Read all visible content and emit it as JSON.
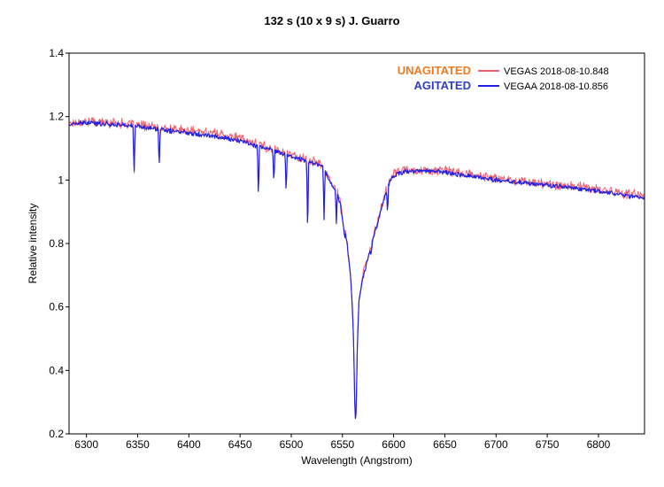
{
  "chart_data": {
    "type": "line",
    "title": "132 s (10 x 9 s)   J. Guarro",
    "xlabel": "Wavelength (Angstrom)",
    "ylabel": "Relative intensity",
    "xlim": [
      6283,
      6845
    ],
    "ylim": [
      0.2,
      1.4
    ],
    "x_ticks": [
      6300,
      6350,
      6400,
      6450,
      6500,
      6550,
      6600,
      6650,
      6700,
      6750,
      6800
    ],
    "y_ticks": [
      0.2,
      0.4,
      0.6,
      0.8,
      1,
      1.2,
      1.4
    ],
    "x_tick_labels": [
      "6300",
      "6350",
      "6400",
      "6450",
      "6500",
      "6550",
      "6600",
      "6650",
      "6700",
      "6750",
      "6800"
    ],
    "y_tick_labels": [
      "0.2",
      "0.4",
      "0.6",
      "0.8",
      "1",
      "1.2",
      "1.4"
    ],
    "grid": false,
    "legend_position": "top-right",
    "series": [
      {
        "name": "VEGAS  2018-08-10.848",
        "tag": "UNAGITATED",
        "color": "#f06070",
        "tag_color": "#f07a20",
        "noise": 0.012,
        "points": [
          [
            6283,
            1.18
          ],
          [
            6300,
            1.185
          ],
          [
            6330,
            1.18
          ],
          [
            6360,
            1.17
          ],
          [
            6380,
            1.16
          ],
          [
            6400,
            1.155
          ],
          [
            6420,
            1.15
          ],
          [
            6440,
            1.14
          ],
          [
            6460,
            1.12
          ],
          [
            6480,
            1.1
          ],
          [
            6500,
            1.08
          ],
          [
            6510,
            1.07
          ],
          [
            6520,
            1.06
          ],
          [
            6530,
            1.05
          ],
          [
            6540,
            0.99
          ],
          [
            6545,
            0.96
          ],
          [
            6548,
            0.93
          ],
          [
            6550,
            0.88
          ],
          [
            6553,
            0.84
          ],
          [
            6556,
            0.76
          ],
          [
            6558,
            0.7
          ],
          [
            6560,
            0.58
          ],
          [
            6561,
            0.48
          ],
          [
            6562,
            0.3
          ],
          [
            6562.8,
            0.245
          ],
          [
            6563.5,
            0.3
          ],
          [
            6564.5,
            0.48
          ],
          [
            6566,
            0.62
          ],
          [
            6570,
            0.7
          ],
          [
            6575,
            0.76
          ],
          [
            6580,
            0.82
          ],
          [
            6585,
            0.88
          ],
          [
            6590,
            0.94
          ],
          [
            6595,
            0.99
          ],
          [
            6600,
            1.02
          ],
          [
            6610,
            1.03
          ],
          [
            6630,
            1.03
          ],
          [
            6650,
            1.03
          ],
          [
            6680,
            1.015
          ],
          [
            6700,
            1.005
          ],
          [
            6730,
            0.995
          ],
          [
            6760,
            0.985
          ],
          [
            6790,
            0.975
          ],
          [
            6810,
            0.965
          ],
          [
            6830,
            0.955
          ],
          [
            6845,
            0.95
          ]
        ],
        "dips": [
          [
            6346.5,
            1.01
          ],
          [
            6371,
            1.04
          ],
          [
            6468,
            0.92
          ],
          [
            6483,
            0.99
          ],
          [
            6495,
            0.96
          ],
          [
            6516,
            0.83
          ],
          [
            6532,
            0.89
          ],
          [
            6544,
            0.87
          ],
          [
            6552,
            0.83
          ],
          [
            6563,
            0.245
          ],
          [
            6572,
            0.73
          ],
          [
            6578,
            0.77
          ],
          [
            6594,
            0.89
          ]
        ]
      },
      {
        "name": "VEGAA  2018-08-10.856",
        "tag": "AGITATED",
        "color": "#2020e0",
        "tag_color": "#3040c0",
        "noise": 0.006,
        "points": [
          [
            6283,
            1.175
          ],
          [
            6300,
            1.18
          ],
          [
            6330,
            1.175
          ],
          [
            6360,
            1.165
          ],
          [
            6380,
            1.155
          ],
          [
            6400,
            1.15
          ],
          [
            6420,
            1.14
          ],
          [
            6440,
            1.13
          ],
          [
            6460,
            1.115
          ],
          [
            6480,
            1.095
          ],
          [
            6500,
            1.075
          ],
          [
            6510,
            1.065
          ],
          [
            6520,
            1.055
          ],
          [
            6530,
            1.045
          ],
          [
            6540,
            0.985
          ],
          [
            6545,
            0.955
          ],
          [
            6548,
            0.925
          ],
          [
            6550,
            0.875
          ],
          [
            6553,
            0.835
          ],
          [
            6556,
            0.755
          ],
          [
            6558,
            0.695
          ],
          [
            6560,
            0.575
          ],
          [
            6561,
            0.475
          ],
          [
            6562,
            0.3
          ],
          [
            6562.8,
            0.245
          ],
          [
            6563.5,
            0.3
          ],
          [
            6564.5,
            0.475
          ],
          [
            6566,
            0.615
          ],
          [
            6570,
            0.695
          ],
          [
            6575,
            0.755
          ],
          [
            6580,
            0.815
          ],
          [
            6585,
            0.875
          ],
          [
            6590,
            0.935
          ],
          [
            6595,
            0.985
          ],
          [
            6600,
            1.015
          ],
          [
            6610,
            1.025
          ],
          [
            6630,
            1.03
          ],
          [
            6650,
            1.025
          ],
          [
            6680,
            1.01
          ],
          [
            6700,
            1.0
          ],
          [
            6730,
            0.99
          ],
          [
            6760,
            0.98
          ],
          [
            6790,
            0.97
          ],
          [
            6810,
            0.96
          ],
          [
            6830,
            0.95
          ],
          [
            6845,
            0.945
          ]
        ],
        "dips": [
          [
            6346.5,
            1.005
          ],
          [
            6371,
            1.035
          ],
          [
            6468,
            0.93
          ],
          [
            6483,
            0.98
          ],
          [
            6495,
            0.95
          ],
          [
            6516,
            0.815
          ],
          [
            6532,
            0.875
          ],
          [
            6544,
            0.865
          ],
          [
            6552,
            0.815
          ],
          [
            6563,
            0.245
          ],
          [
            6572,
            0.725
          ],
          [
            6578,
            0.765
          ],
          [
            6594,
            0.885
          ]
        ]
      }
    ]
  }
}
